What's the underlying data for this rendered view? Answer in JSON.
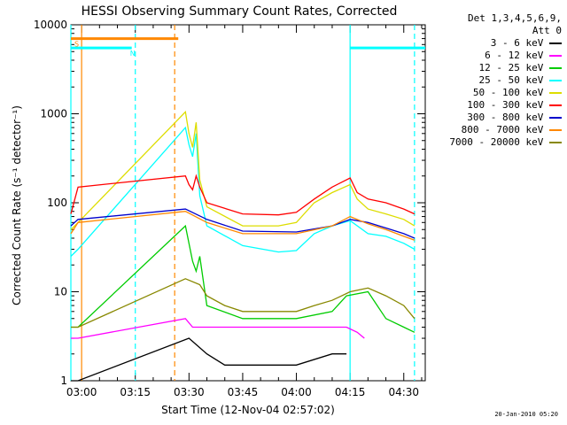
{
  "chart_data": {
    "type": "line",
    "title": "HESSI Observing Summary Count Rates, Corrected",
    "xlabel": "Start Time (12-Nov-04 02:57:02)",
    "ylabel": "Corrected Count Rate (s⁻¹ detector⁻¹)",
    "yscale": "log",
    "ylim": [
      1,
      10000
    ],
    "xlim": [
      "02:57",
      "04:36"
    ],
    "x_ticks": [
      "03:00",
      "03:15",
      "03:30",
      "03:45",
      "04:00",
      "04:15",
      "04:30"
    ],
    "y_ticks": [
      "1",
      "10",
      "100",
      "1000",
      "10000"
    ],
    "legend_header": [
      "Det 1,3,4,5,6,9,",
      "Att 0"
    ],
    "legend_position": "right",
    "series": [
      {
        "name": "3 - 6 keV",
        "color": "#000000",
        "x": [
          "02:57",
          "02:59",
          "03:30",
          "03:35",
          "03:40",
          "03:45",
          "04:00",
          "04:10",
          "04:14"
        ],
        "y": [
          1,
          1,
          3,
          2,
          1.5,
          1.5,
          1.5,
          2,
          2
        ]
      },
      {
        "name": "6 - 12 keV",
        "color": "#ff00ff",
        "x": [
          "02:57",
          "02:59",
          "03:29",
          "03:31",
          "03:35",
          "03:45",
          "04:00",
          "04:10",
          "04:14",
          "04:17",
          "04:19"
        ],
        "y": [
          3,
          3,
          5,
          4,
          4,
          4,
          4,
          4,
          4,
          3.5,
          3
        ]
      },
      {
        "name": "12 - 25 keV",
        "color": "#00cc00",
        "x": [
          "02:57",
          "02:59",
          "03:29",
          "03:31",
          "03:32",
          "03:33",
          "03:35",
          "03:45",
          "04:00",
          "04:10",
          "04:14",
          "04:20",
          "04:25",
          "04:30",
          "04:33"
        ],
        "y": [
          4,
          4,
          55,
          22,
          17,
          25,
          7,
          5,
          5,
          6,
          9,
          10,
          5,
          4,
          3.5
        ]
      },
      {
        "name": "25 - 50 keV",
        "color": "#00ffff",
        "x": [
          "02:57",
          "02:59",
          "03:29",
          "03:30",
          "03:31",
          "03:32",
          "03:33",
          "03:35",
          "03:45",
          "03:55",
          "04:00",
          "04:05",
          "04:10",
          "04:15",
          "04:20",
          "04:25",
          "04:30",
          "04:33"
        ],
        "y": [
          25,
          30,
          700,
          450,
          330,
          600,
          120,
          55,
          33,
          28,
          29,
          45,
          55,
          63,
          45,
          42,
          35,
          30
        ]
      },
      {
        "name": "50 - 100 keV",
        "color": "#dddd00",
        "x": [
          "02:57",
          "02:59",
          "03:29",
          "03:30",
          "03:31",
          "03:32",
          "03:33",
          "03:35",
          "03:45",
          "03:55",
          "04:00",
          "04:05",
          "04:10",
          "04:15",
          "04:17",
          "04:20",
          "04:25",
          "04:30",
          "04:33"
        ],
        "y": [
          50,
          60,
          1050,
          600,
          420,
          800,
          180,
          90,
          55,
          55,
          60,
          100,
          130,
          160,
          110,
          85,
          75,
          65,
          55
        ]
      },
      {
        "name": "100 - 300 keV",
        "color": "#ff0000",
        "x": [
          "02:57",
          "02:59",
          "03:29",
          "03:30",
          "03:31",
          "03:32",
          "03:33",
          "03:35",
          "03:45",
          "03:55",
          "04:00",
          "04:05",
          "04:10",
          "04:15",
          "04:17",
          "04:20",
          "04:25",
          "04:30",
          "04:33"
        ],
        "y": [
          75,
          150,
          200,
          160,
          140,
          200,
          150,
          100,
          75,
          73,
          78,
          110,
          150,
          190,
          130,
          110,
          100,
          85,
          75
        ]
      },
      {
        "name": "300 - 800 keV",
        "color": "#0000cc",
        "x": [
          "02:57",
          "02:59",
          "03:29",
          "03:35",
          "03:45",
          "04:00",
          "04:10",
          "04:15",
          "04:20",
          "04:25",
          "04:30",
          "04:33"
        ],
        "y": [
          55,
          65,
          85,
          65,
          48,
          47,
          55,
          65,
          60,
          52,
          45,
          40
        ]
      },
      {
        "name": "800 - 7000 keV",
        "color": "#ff8800",
        "x": [
          "02:57",
          "02:59",
          "03:29",
          "03:35",
          "03:45",
          "04:00",
          "04:10",
          "04:15",
          "04:20",
          "04:25",
          "04:30",
          "04:33"
        ],
        "y": [
          45,
          60,
          80,
          60,
          45,
          45,
          55,
          70,
          58,
          50,
          42,
          38
        ]
      },
      {
        "name": "7000 - 20000 keV",
        "color": "#888800",
        "x": [
          "02:57",
          "02:59",
          "03:29",
          "03:33",
          "03:35",
          "03:40",
          "03:45",
          "04:00",
          "04:05",
          "04:10",
          "04:15",
          "04:20",
          "04:25",
          "04:30",
          "04:33"
        ],
        "y": [
          4,
          4,
          14,
          12,
          9,
          7,
          6,
          6,
          7,
          8,
          10,
          11,
          9,
          7,
          5
        ]
      }
    ],
    "flags": [
      {
        "label": "S",
        "color": "#ff8800",
        "y": 7000,
        "x_start": "02:57",
        "x_end": "03:27"
      },
      {
        "label": "N",
        "color": "#00ffff",
        "y": 5500,
        "x_start": "02:57",
        "x_end": "03:14"
      },
      {
        "label": "",
        "color": "#00ffff",
        "y": 5500,
        "x_start": "04:15",
        "x_end": "04:36"
      }
    ],
    "vlines": [
      {
        "x": "02:57",
        "color": "#00ffff",
        "dashed": false
      },
      {
        "x": "03:00",
        "color": "#ff8800",
        "dashed": false
      },
      {
        "x": "03:15",
        "color": "#00ffff",
        "dashed": true
      },
      {
        "x": "03:26",
        "color": "#ff8800",
        "dashed": true
      },
      {
        "x": "04:15",
        "color": "#00ffff",
        "dashed": false
      },
      {
        "x": "04:33",
        "color": "#00ffff",
        "dashed": true
      }
    ]
  },
  "footer": "20-Jan-2010 05:20"
}
